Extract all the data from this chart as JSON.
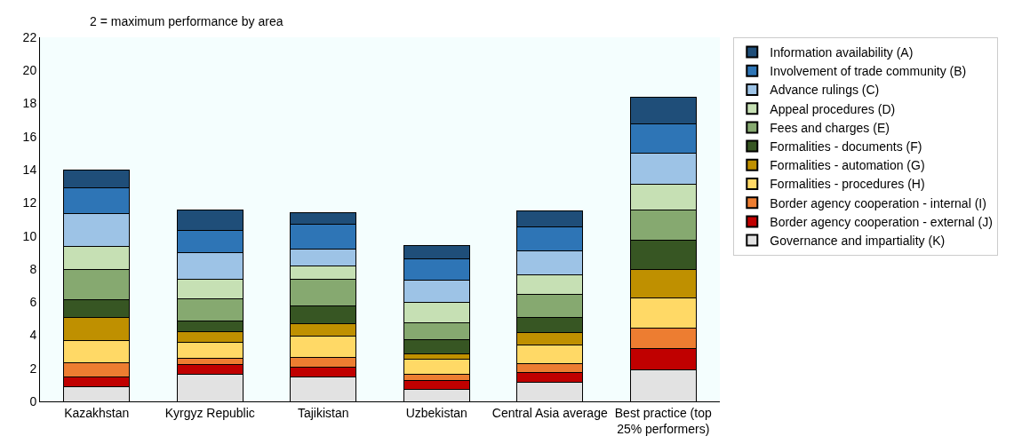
{
  "chart_data": {
    "type": "bar",
    "stacked": true,
    "subtitle": "2 = maximum performance by area",
    "categories": [
      "Kazakhstan",
      "Kyrgyz Republic",
      "Tajikistan",
      "Uzbekistan",
      "Central Asia average",
      "Best practice (top 25% performers)"
    ],
    "series": [
      {
        "name": "Governance and impartiality (K)",
        "color": "#e2e2e2",
        "values": [
          0.9,
          1.65,
          1.45,
          0.75,
          1.15,
          1.9
        ]
      },
      {
        "name": "Border agency cooperation - external (J)",
        "color": "#c00000",
        "values": [
          0.6,
          0.6,
          0.6,
          0.5,
          0.6,
          1.3
        ]
      },
      {
        "name": "Border agency cooperation - internal (I)",
        "color": "#ed7d31",
        "values": [
          0.85,
          0.35,
          0.6,
          0.4,
          0.55,
          1.25
        ]
      },
      {
        "name": "Formalities - procedures (H)",
        "color": "#ffd966",
        "values": [
          1.3,
          0.95,
          1.3,
          0.9,
          1.1,
          1.8
        ]
      },
      {
        "name": "Formalities - automation (G)",
        "color": "#bf9000",
        "values": [
          1.4,
          0.65,
          0.75,
          0.3,
          0.75,
          1.7
        ]
      },
      {
        "name": "Formalities - documents (F)",
        "color": "#375623",
        "values": [
          1.1,
          0.65,
          1.05,
          0.9,
          0.9,
          1.8
        ]
      },
      {
        "name": "Fees and charges (E)",
        "color": "#86a970",
        "values": [
          1.8,
          1.35,
          1.65,
          1.0,
          1.4,
          1.8
        ]
      },
      {
        "name": "Appeal procedures (D)",
        "color": "#c6e0b4",
        "values": [
          1.4,
          1.2,
          0.8,
          1.25,
          1.2,
          1.55
        ]
      },
      {
        "name": "Advance rulings (C)",
        "color": "#9dc3e6",
        "values": [
          2.0,
          1.6,
          1.0,
          1.35,
          1.45,
          1.9
        ]
      },
      {
        "name": "Involvement of trade community (B)",
        "color": "#2e75b6",
        "values": [
          1.55,
          1.35,
          1.5,
          1.25,
          1.45,
          1.75
        ]
      },
      {
        "name": "Information availability (A)",
        "color": "#1f4e79",
        "values": [
          1.1,
          1.2,
          0.7,
          0.8,
          0.95,
          1.65
        ]
      }
    ],
    "ylim": [
      0,
      22
    ],
    "yticks": [
      0,
      2,
      4,
      6,
      8,
      10,
      12,
      14,
      16,
      18,
      20,
      22
    ],
    "grid": false,
    "legend": "right"
  }
}
